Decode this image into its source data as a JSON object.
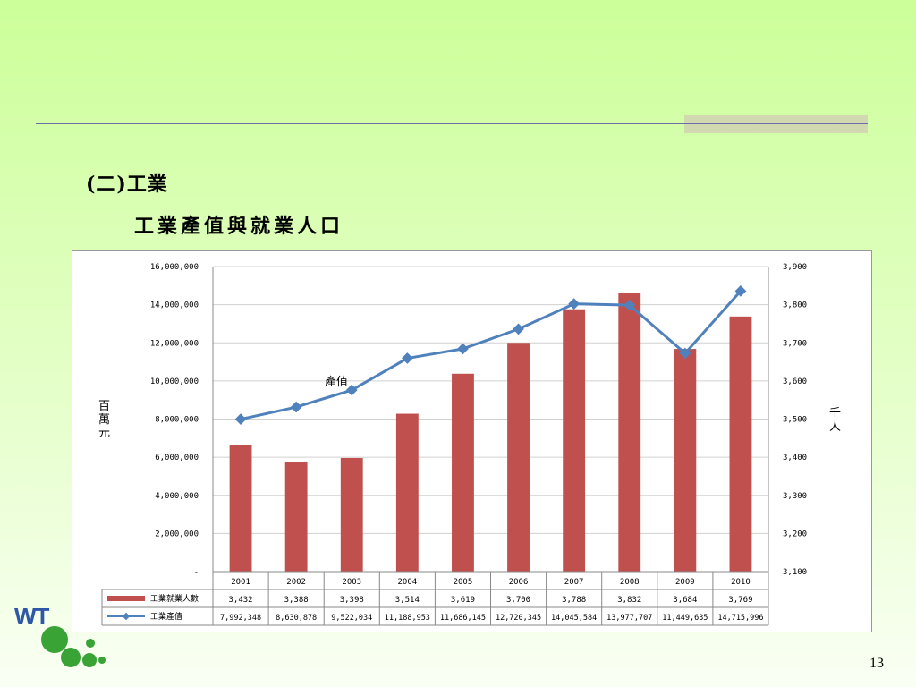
{
  "slide": {
    "heading": "(二)工業",
    "subheading": "工業產值與就業人口",
    "page_number": "13",
    "colors": {
      "background": "#ccff99",
      "rule": "#6b6fa6",
      "bar": "#c0504d",
      "line": "#4f81bd"
    }
  },
  "logo": {
    "text": "WT"
  },
  "chart_data": {
    "type": "bar",
    "categories": [
      "2001",
      "2002",
      "2003",
      "2004",
      "2005",
      "2006",
      "2007",
      "2008",
      "2009",
      "2010"
    ],
    "series": [
      {
        "name": "工業就業人數",
        "type": "bar",
        "axis": "right",
        "values": [
          3432,
          3388,
          3398,
          3514,
          3619,
          3700,
          3788,
          3832,
          3684,
          3769
        ],
        "labels": [
          "3,432",
          "3,388",
          "3,398",
          "3,514",
          "3,619",
          "3,700",
          "3,788",
          "3,832",
          "3,684",
          "3,769"
        ]
      },
      {
        "name": "工業產值",
        "type": "line",
        "axis": "left",
        "values": [
          7992348,
          8630878,
          9522034,
          11188953,
          11686145,
          12720345,
          14045584,
          13977707,
          11449635,
          14715996
        ],
        "labels": [
          "7,992,348",
          "8,630,878",
          "9,522,034",
          "11,188,953",
          "11,686,145",
          "12,720,345",
          "14,045,584",
          "13,977,707",
          "11,449,635",
          "14,715,996"
        ]
      }
    ],
    "left_axis": {
      "label": "百萬元",
      "min": 0,
      "max": 16000000,
      "ticks": [
        "-",
        "2,000,000",
        "4,000,000",
        "6,000,000",
        "8,000,000",
        "10,000,000",
        "12,000,000",
        "14,000,000",
        "16,000,000"
      ]
    },
    "right_axis": {
      "label": "千人",
      "min": 3100,
      "max": 3900,
      "ticks": [
        "3,100",
        "3,200",
        "3,300",
        "3,400",
        "3,500",
        "3,600",
        "3,700",
        "3,800",
        "3,900"
      ]
    },
    "annotation": "產值",
    "grid": true,
    "data_table": true
  }
}
